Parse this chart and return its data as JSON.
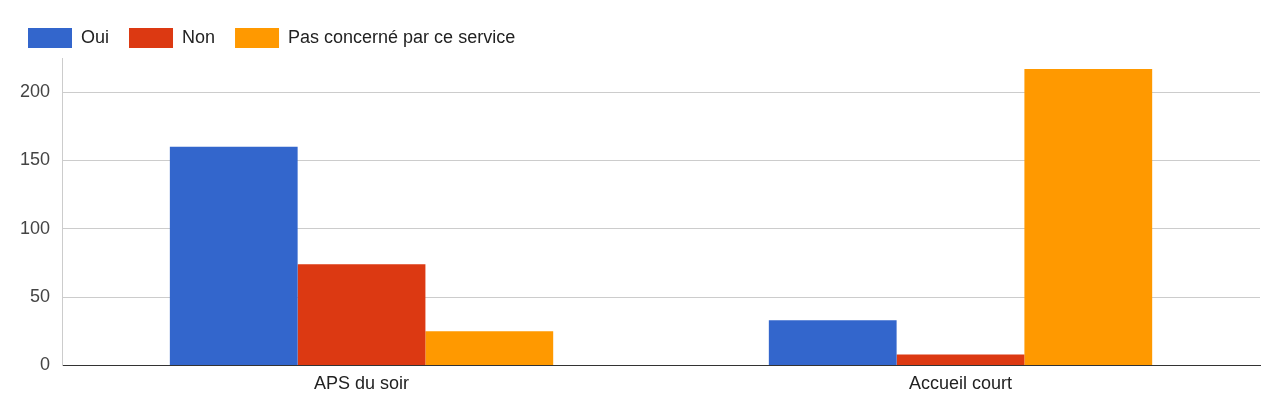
{
  "chart_data": {
    "type": "bar",
    "categories": [
      "APS du soir",
      "Accueil court"
    ],
    "series": [
      {
        "name": "Oui",
        "color": "#3366cc",
        "values": [
          160,
          33
        ]
      },
      {
        "name": "Non",
        "color": "#dc3912",
        "values": [
          74,
          8
        ]
      },
      {
        "name": "Pas concerné par ce service",
        "color": "#ff9900",
        "values": [
          25,
          217
        ]
      }
    ],
    "ylim": [
      0,
      225
    ],
    "yticks": [
      0,
      50,
      100,
      150,
      200
    ],
    "grid": "y",
    "legend": "top left"
  }
}
